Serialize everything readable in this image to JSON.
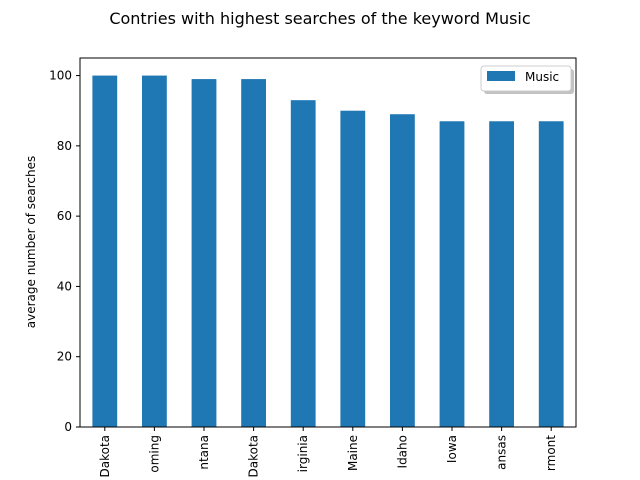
{
  "chart_data": {
    "type": "bar",
    "title": "Contries with highest searches of the keyword Music",
    "xlabel": "",
    "ylabel": "average number of searches",
    "categories": [
      "Dakota",
      "Wyoming",
      "Montana",
      "Dakota",
      "Virginia",
      "Maine",
      "Idaho",
      "Iowa",
      "Kansas",
      "Vermont"
    ],
    "category_labels_visible": [
      "Dakota",
      "oming",
      "ntana",
      "Dakota",
      "irginia",
      "Maine",
      "Idaho",
      "Iowa",
      "ansas",
      "rmont"
    ],
    "series": [
      {
        "name": "Music",
        "color": "#1f77b4",
        "values": [
          100,
          100,
          99,
          99,
          93,
          90,
          89,
          87,
          87,
          87
        ]
      }
    ],
    "ylim": [
      0,
      105
    ],
    "yticks": [
      0,
      20,
      40,
      60,
      80,
      100
    ],
    "grid": false,
    "legend_position": "top-right"
  }
}
